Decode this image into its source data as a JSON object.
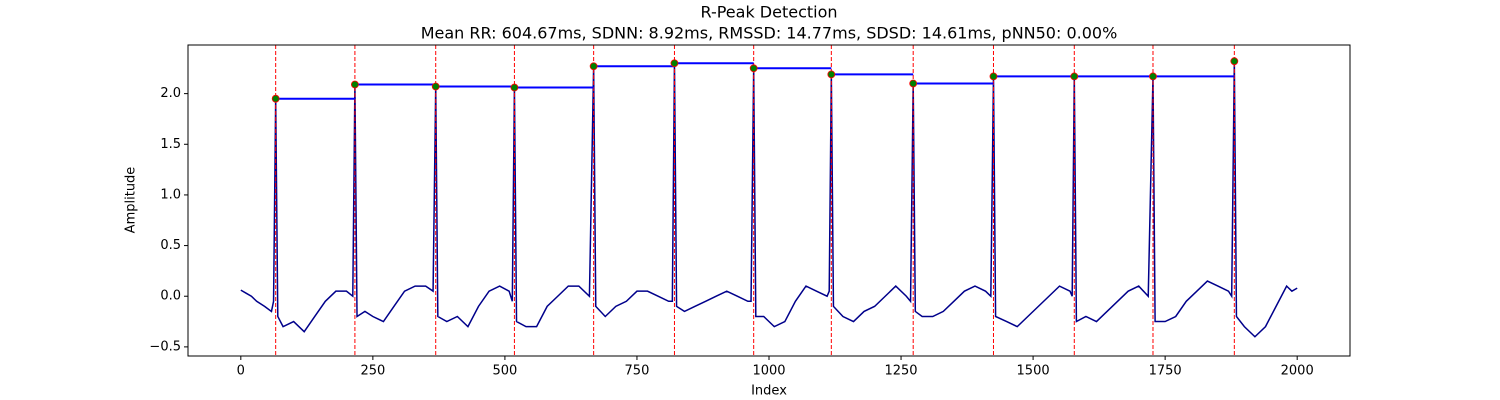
{
  "chart_data": {
    "type": "line",
    "title": "R-Peak Detection",
    "subtitle": "Mean RR: 604.67ms, SDNN: 8.92ms, RMSSD: 14.77ms, SDSD: 14.61ms, pNN50: 0.00%",
    "x_label": "Index",
    "y_label": "Amplitude",
    "xlim": [
      -100,
      2100
    ],
    "ylim": [
      -0.59,
      2.48
    ],
    "xticks": [
      0,
      250,
      500,
      750,
      1000,
      1250,
      1500,
      1750,
      2000
    ],
    "yticks": [
      {
        "value": -0.5,
        "label": "−0.5"
      },
      {
        "value": 0,
        "label": "0.0"
      },
      0.5,
      {
        "value": 1,
        "label": "1.0"
      },
      1.5,
      {
        "value": 2,
        "label": "2.0"
      }
    ],
    "signal": {
      "color": "#00008b",
      "x": [
        0,
        10,
        20,
        30,
        45,
        58,
        62,
        66,
        70,
        80,
        100,
        120,
        140,
        160,
        180,
        200,
        212,
        216,
        220,
        235,
        250,
        270,
        290,
        310,
        330,
        350,
        364,
        369,
        373,
        390,
        410,
        430,
        450,
        470,
        490,
        508,
        514,
        518,
        522,
        540,
        560,
        580,
        600,
        620,
        640,
        660,
        668,
        672,
        690,
        710,
        730,
        750,
        770,
        790,
        810,
        817,
        821,
        825,
        840,
        860,
        880,
        900,
        920,
        940,
        960,
        966,
        971,
        975,
        990,
        1010,
        1030,
        1050,
        1070,
        1090,
        1110,
        1114,
        1118,
        1122,
        1140,
        1160,
        1180,
        1200,
        1220,
        1240,
        1260,
        1268,
        1273,
        1277,
        1290,
        1310,
        1330,
        1350,
        1370,
        1390,
        1410,
        1420,
        1425,
        1429,
        1450,
        1470,
        1490,
        1510,
        1530,
        1550,
        1570,
        1574,
        1578,
        1582,
        1600,
        1620,
        1640,
        1660,
        1680,
        1700,
        1718,
        1727,
        1731,
        1750,
        1770,
        1790,
        1810,
        1830,
        1850,
        1870,
        1876,
        1881,
        1885,
        1900,
        1920,
        1940,
        1960,
        1980,
        1990,
        2000
      ],
      "values": [
        0.06,
        0.03,
        0.0,
        -0.05,
        -0.1,
        -0.15,
        -0.05,
        1.95,
        -0.2,
        -0.3,
        -0.25,
        -0.35,
        -0.2,
        -0.05,
        0.05,
        0.05,
        0.0,
        2.09,
        -0.2,
        -0.15,
        -0.2,
        -0.25,
        -0.1,
        0.05,
        0.1,
        0.1,
        0.05,
        2.07,
        -0.2,
        -0.25,
        -0.2,
        -0.3,
        -0.1,
        0.05,
        0.1,
        0.05,
        -0.05,
        2.06,
        -0.25,
        -0.3,
        -0.3,
        -0.1,
        0.0,
        0.1,
        0.1,
        0.0,
        2.27,
        -0.1,
        -0.2,
        -0.1,
        -0.05,
        0.05,
        0.05,
        0.0,
        -0.05,
        -0.05,
        2.3,
        -0.1,
        -0.15,
        -0.1,
        -0.05,
        0.0,
        0.05,
        0.0,
        -0.05,
        -0.05,
        2.25,
        -0.2,
        -0.2,
        -0.3,
        -0.25,
        -0.05,
        0.1,
        0.05,
        0.0,
        0.05,
        2.19,
        -0.1,
        -0.2,
        -0.25,
        -0.15,
        -0.1,
        0.0,
        0.1,
        0.0,
        -0.05,
        2.1,
        -0.15,
        -0.2,
        -0.2,
        -0.15,
        -0.05,
        0.05,
        0.1,
        0.05,
        0.0,
        2.17,
        -0.2,
        -0.25,
        -0.3,
        -0.2,
        -0.1,
        0.0,
        0.1,
        0.05,
        0.0,
        2.17,
        -0.25,
        -0.2,
        -0.25,
        -0.15,
        -0.05,
        0.05,
        0.1,
        0.0,
        2.17,
        -0.25,
        -0.25,
        -0.2,
        -0.05,
        0.05,
        0.15,
        0.1,
        0.05,
        0.0,
        2.32,
        -0.2,
        -0.3,
        -0.4,
        -0.3,
        -0.1,
        0.1,
        0.05,
        0.08
      ]
    },
    "peaks": {
      "color": "#008000",
      "edge_color": "#ff0000",
      "x": [
        66,
        216,
        369,
        518,
        668,
        821,
        971,
        1118,
        1273,
        1425,
        1578,
        1727,
        1881
      ],
      "values": [
        1.95,
        2.09,
        2.07,
        2.06,
        2.27,
        2.3,
        2.25,
        2.19,
        2.1,
        2.17,
        2.17,
        2.17,
        2.32
      ]
    },
    "rr_line_color": "#0000ff",
    "peak_line_color": "#ff0000"
  }
}
